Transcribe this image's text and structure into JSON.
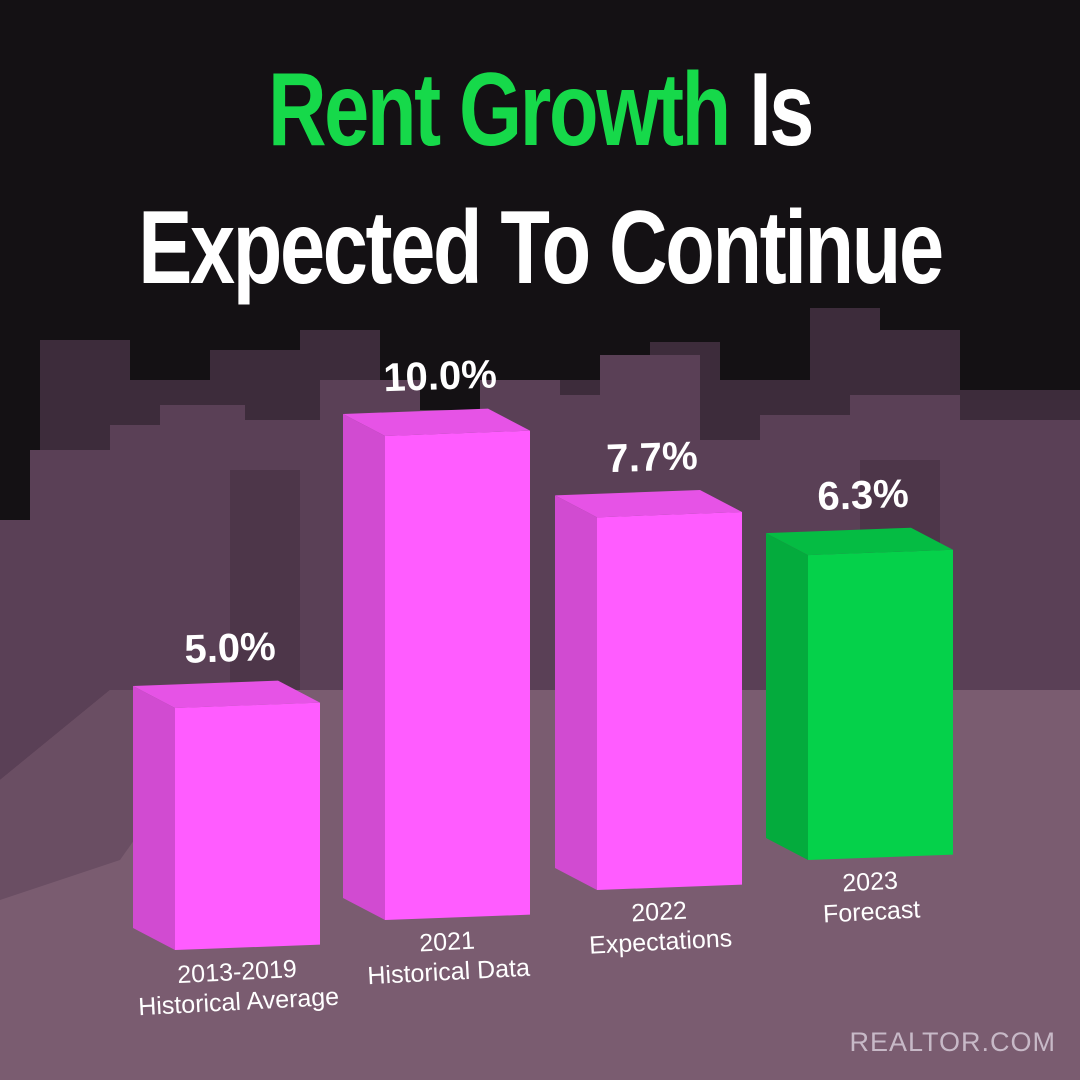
{
  "header": {
    "title_accent": "Rent Growth",
    "title_rest": " Is",
    "title_line2": "Expected To Continue"
  },
  "chart_data": {
    "type": "bar",
    "categories": [
      [
        "2013-2019",
        "Historical Average"
      ],
      [
        "2021",
        "Historical Data"
      ],
      [
        "2022",
        "Expectations"
      ],
      [
        "2023",
        "Forecast"
      ]
    ],
    "values": [
      5.0,
      10.0,
      7.7,
      6.3
    ],
    "value_labels": [
      "5.0%",
      "10.0%",
      "7.7%",
      "6.3%"
    ],
    "bar_colors": [
      "#ff5cff",
      "#ff5cff",
      "#ff5cff",
      "#05d14a"
    ],
    "xlabel": "",
    "ylabel": ""
  },
  "colors": {
    "accent": "#16d94a",
    "background": "#141114",
    "skyline": "#5c4258",
    "ground": "#7b5e70",
    "label_text": "#ffffff"
  },
  "footer": {
    "watermark": "REALTOR.COM"
  }
}
